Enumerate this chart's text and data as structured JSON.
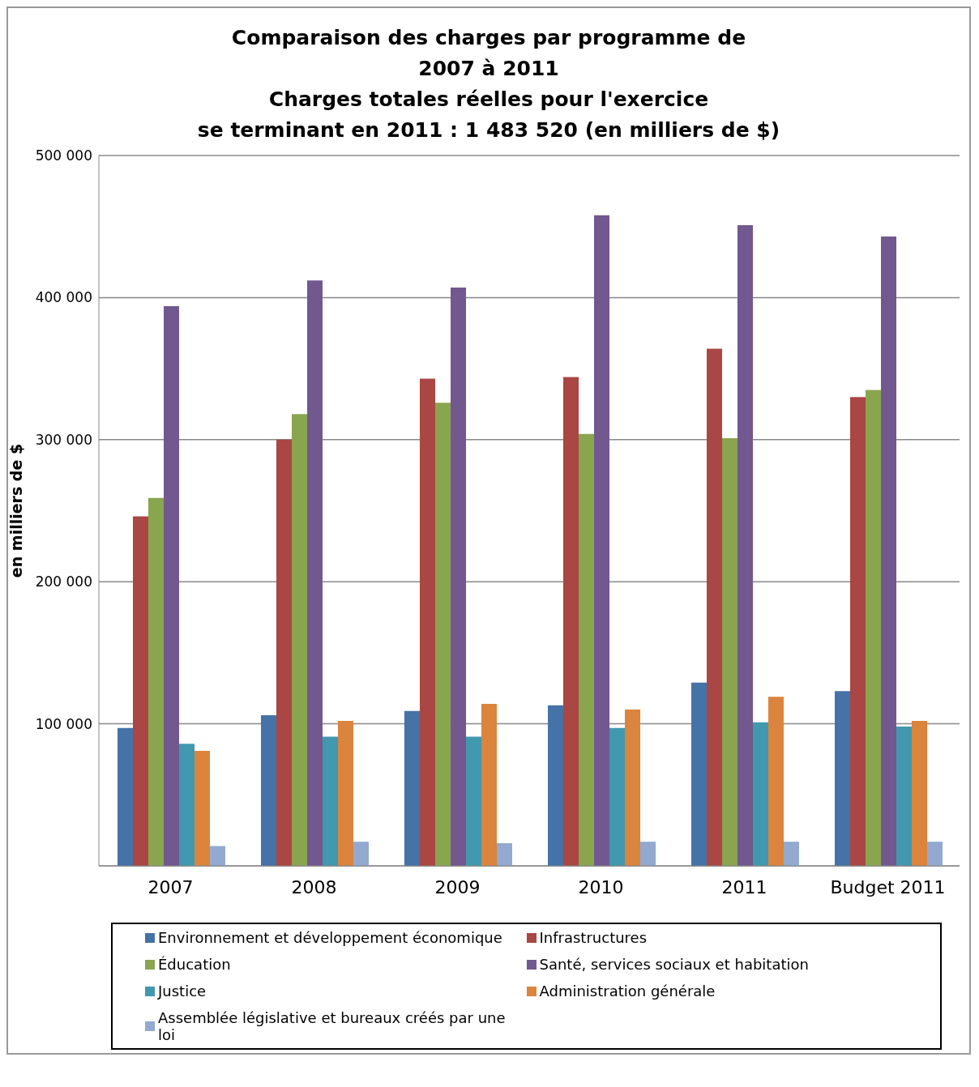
{
  "chart_data": {
    "type": "bar",
    "title": "Comparaison des charges par programme de\n2007 à 2011\nCharges totales réelles pour l'exercice\nse terminant en 2011 : 1 483 520 (en milliers de $)",
    "ylabel": "en milliers de $",
    "categories": [
      "2007",
      "2008",
      "2009",
      "2010",
      "2011",
      "Budget 2011"
    ],
    "series": [
      {
        "name": "Environnement et développement économique",
        "color": "#4572a7",
        "values": [
          97000,
          106000,
          109000,
          113000,
          129000,
          123000
        ]
      },
      {
        "name": "Infrastructures",
        "color": "#aa4643",
        "values": [
          246000,
          300000,
          343000,
          344000,
          364000,
          330000
        ]
      },
      {
        "name": "Éducation",
        "color": "#89a54e",
        "values": [
          259000,
          318000,
          326000,
          304000,
          301000,
          335000
        ]
      },
      {
        "name": "Santé, services sociaux et habitation",
        "color": "#71588f",
        "values": [
          394000,
          412000,
          407000,
          458000,
          451000,
          443000
        ]
      },
      {
        "name": "Justice",
        "color": "#4198af",
        "values": [
          86000,
          91000,
          91000,
          97000,
          101000,
          98000
        ]
      },
      {
        "name": "Administration générale",
        "color": "#db843d",
        "values": [
          81000,
          102000,
          114000,
          110000,
          119000,
          102000
        ]
      },
      {
        "name": "Assemblée législative et bureaux créés par une loi",
        "color": "#93a9cf",
        "values": [
          14000,
          17000,
          16000,
          17000,
          17000,
          17000
        ]
      }
    ],
    "ylim": [
      0,
      500000
    ],
    "yticks": [
      {
        "value": 0,
        "label": null
      },
      {
        "value": 100000,
        "label": "100 000"
      },
      {
        "value": 200000,
        "label": "200 000"
      },
      {
        "value": 300000,
        "label": "300 000"
      },
      {
        "value": 400000,
        "label": "400 000"
      },
      {
        "value": 500000,
        "label": "500 000"
      }
    ],
    "grid": "y",
    "legend": "bottom"
  }
}
